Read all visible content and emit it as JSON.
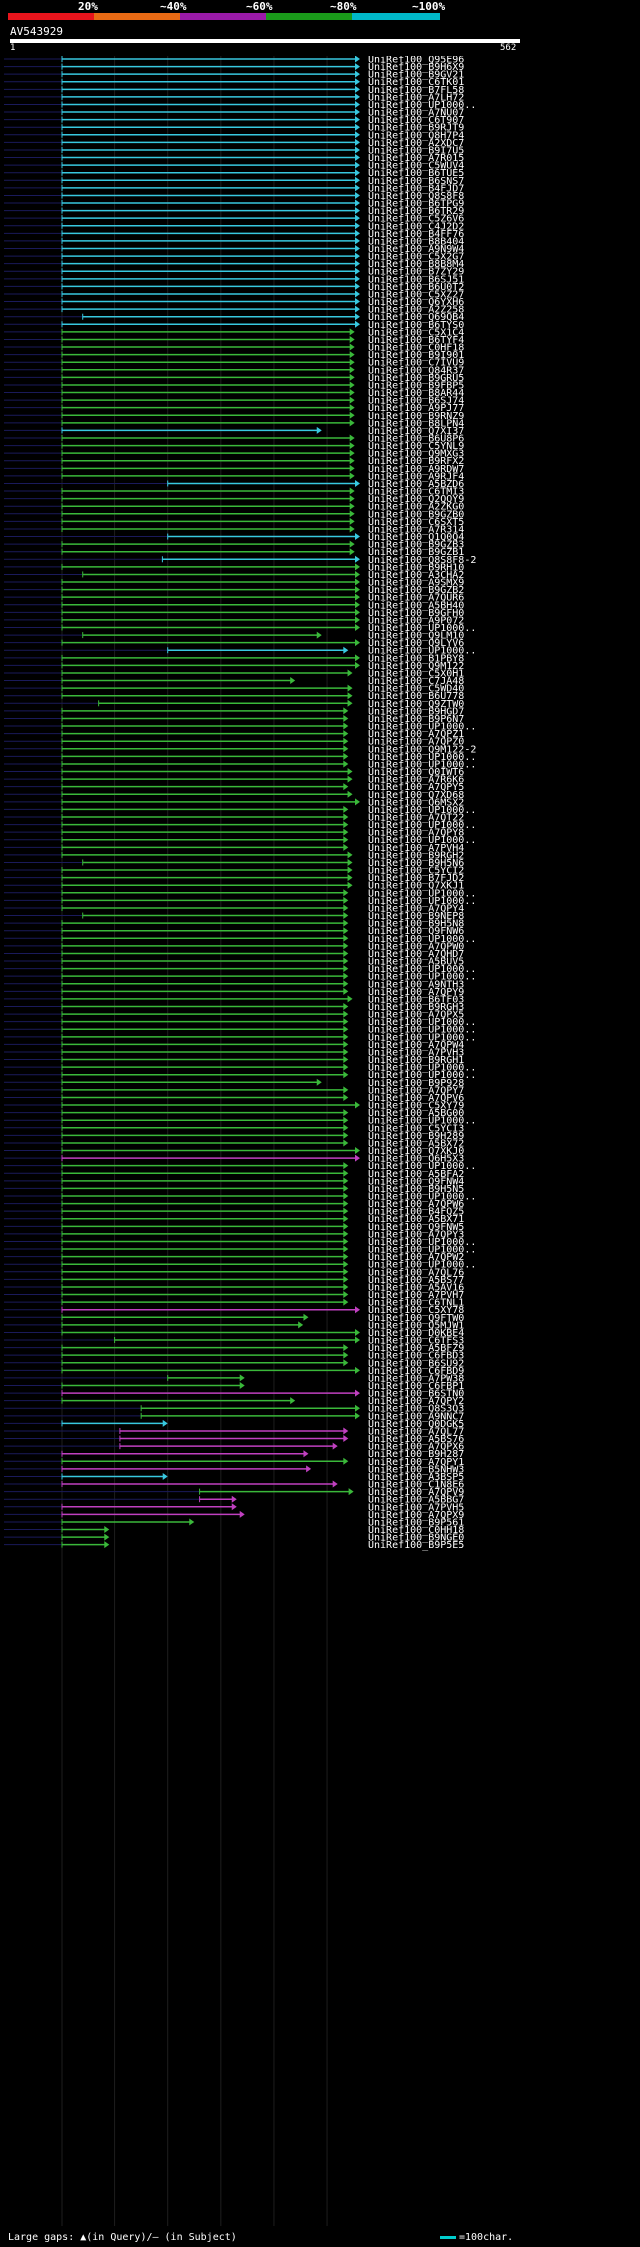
{
  "legend": {
    "labels": [
      "20%",
      "~40%",
      "~60%",
      "~80%",
      "~100%"
    ],
    "colors": [
      "#e8141c",
      "#e86a14",
      "#9a1aa8",
      "#1a9a1a",
      "#00b8c8"
    ]
  },
  "query": {
    "name": "AV543929",
    "start": "1",
    "end": "562",
    "length": 562
  },
  "footer": {
    "gaps_text": "Large gaps: ▲(in Query)/— (in Subject)",
    "scale_text": "=100char."
  },
  "colors": {
    "cyan": "#38c8e0",
    "green": "#3ab83a",
    "magenta": "#c040c0",
    "bg": "#000000"
  },
  "hits": [
    {
      "id": "UniRef100_Q95E96",
      "c": "cyan",
      "s": 1,
      "e": 562
    },
    {
      "id": "UniRef100_B9H6X9",
      "c": "cyan",
      "s": 1,
      "e": 562
    },
    {
      "id": "UniRef100_B9GV21",
      "c": "cyan",
      "s": 1,
      "e": 562
    },
    {
      "id": "UniRef100_C6TK01",
      "c": "cyan",
      "s": 1,
      "e": 562
    },
    {
      "id": "UniRef100_B7FL58",
      "c": "cyan",
      "s": 1,
      "e": 562
    },
    {
      "id": "UniRef100_A7LH72",
      "c": "cyan",
      "s": 1,
      "e": 562
    },
    {
      "id": "UniRef100_UP1000..",
      "c": "cyan",
      "s": 1,
      "e": 562
    },
    {
      "id": "UniRef100_A7NU07",
      "c": "cyan",
      "s": 1,
      "e": 562
    },
    {
      "id": "UniRef100_C6T907",
      "c": "cyan",
      "s": 1,
      "e": 562
    },
    {
      "id": "UniRef100_B9RJT9",
      "c": "cyan",
      "s": 1,
      "e": 562
    },
    {
      "id": "UniRef100_Q8H7P4",
      "c": "cyan",
      "s": 1,
      "e": 562
    },
    {
      "id": "UniRef100_A2XDC7",
      "c": "cyan",
      "s": 1,
      "e": 562
    },
    {
      "id": "UniRef100_B9I7U5",
      "c": "cyan",
      "s": 1,
      "e": 562
    },
    {
      "id": "UniRef100_A7R015",
      "c": "cyan",
      "s": 1,
      "e": 562
    },
    {
      "id": "UniRef100_C5WUV4",
      "c": "cyan",
      "s": 1,
      "e": 562
    },
    {
      "id": "UniRef100_B6TUE5",
      "c": "cyan",
      "s": 1,
      "e": 562
    },
    {
      "id": "UniRef100_B6SNS7",
      "c": "cyan",
      "s": 1,
      "e": 562
    },
    {
      "id": "UniRef100_B4FJD7",
      "c": "cyan",
      "s": 1,
      "e": 562
    },
    {
      "id": "UniRef100_Q8S8F8",
      "c": "cyan",
      "s": 1,
      "e": 562
    },
    {
      "id": "UniRef100_B6TPG9",
      "c": "cyan",
      "s": 1,
      "e": 562
    },
    {
      "id": "UniRef100_B6TR29",
      "c": "cyan",
      "s": 1,
      "e": 562
    },
    {
      "id": "UniRef100_C5Z6V6",
      "c": "cyan",
      "s": 1,
      "e": 562
    },
    {
      "id": "UniRef100_C4J2D2",
      "c": "cyan",
      "s": 1,
      "e": 562
    },
    {
      "id": "UniRef100_B4FF76",
      "c": "cyan",
      "s": 1,
      "e": 562
    },
    {
      "id": "UniRef100_B8B404",
      "c": "cyan",
      "s": 1,
      "e": 562
    },
    {
      "id": "UniRef100_A9N9W4",
      "c": "cyan",
      "s": 1,
      "e": 562
    },
    {
      "id": "UniRef100_C5X2G7",
      "c": "cyan",
      "s": 1,
      "e": 562
    },
    {
      "id": "UniRef100_B8B8M4",
      "c": "cyan",
      "s": 1,
      "e": 562
    },
    {
      "id": "UniRef100_B7ZY29",
      "c": "cyan",
      "s": 1,
      "e": 562
    },
    {
      "id": "UniRef100_B6SJ51",
      "c": "cyan",
      "s": 1,
      "e": 562
    },
    {
      "id": "UniRef100_B6U0T2",
      "c": "cyan",
      "s": 1,
      "e": 562
    },
    {
      "id": "UniRef100_C5XZ27",
      "c": "cyan",
      "s": 1,
      "e": 562
    },
    {
      "id": "UniRef100_Q6YXH6",
      "c": "cyan",
      "s": 1,
      "e": 562
    },
    {
      "id": "UniRef100_A2Z258",
      "c": "cyan",
      "s": 1,
      "e": 562
    },
    {
      "id": "UniRef100_Q69QB4",
      "c": "cyan",
      "s": 40,
      "e": 562
    },
    {
      "id": "UniRef100_B6TYS0",
      "c": "cyan",
      "s": 1,
      "e": 562
    },
    {
      "id": "UniRef100_C5X1C4",
      "c": "green",
      "s": 1,
      "e": 552
    },
    {
      "id": "UniRef100_B6TYF4",
      "c": "green",
      "s": 1,
      "e": 552
    },
    {
      "id": "UniRef100_C0HF18",
      "c": "green",
      "s": 1,
      "e": 552
    },
    {
      "id": "UniRef100_B9I901",
      "c": "green",
      "s": 1,
      "e": 552
    },
    {
      "id": "UniRef100_C7IVU9",
      "c": "green",
      "s": 1,
      "e": 552
    },
    {
      "id": "UniRef100_Q84R37",
      "c": "green",
      "s": 1,
      "e": 552
    },
    {
      "id": "UniRef100_B9GRU5",
      "c": "green",
      "s": 1,
      "e": 552
    },
    {
      "id": "UniRef100_B9FBP5",
      "c": "green",
      "s": 1,
      "e": 552
    },
    {
      "id": "UniRef100_B8AR44",
      "c": "green",
      "s": 1,
      "e": 552
    },
    {
      "id": "UniRef100_B6SJ74",
      "c": "green",
      "s": 1,
      "e": 552
    },
    {
      "id": "UniRef100_A9PJ77",
      "c": "green",
      "s": 1,
      "e": 552
    },
    {
      "id": "UniRef100_B9RNZ9",
      "c": "green",
      "s": 1,
      "e": 552
    },
    {
      "id": "UniRef100_B8LPN4",
      "c": "green",
      "s": 1,
      "e": 552
    },
    {
      "id": "UniRef100_Q7XI37",
      "c": "cyan",
      "s": 1,
      "e": 490
    },
    {
      "id": "UniRef100_B6U8P6",
      "c": "green",
      "s": 1,
      "e": 552
    },
    {
      "id": "UniRef100_C5YNL9",
      "c": "green",
      "s": 1,
      "e": 552
    },
    {
      "id": "UniRef100_Q9MXG3",
      "c": "green",
      "s": 1,
      "e": 552
    },
    {
      "id": "UniRef100_B9RFX2",
      "c": "green",
      "s": 1,
      "e": 552
    },
    {
      "id": "UniRef100_A9RDW7",
      "c": "green",
      "s": 1,
      "e": 552
    },
    {
      "id": "UniRef100_A9RJF4",
      "c": "green",
      "s": 1,
      "e": 552
    },
    {
      "id": "UniRef100_A5BZD6",
      "c": "cyan",
      "s": 200,
      "e": 562
    },
    {
      "id": "UniRef100_C6TMI3",
      "c": "green",
      "s": 1,
      "e": 552
    },
    {
      "id": "UniRef100_Q2QQY9",
      "c": "green",
      "s": 1,
      "e": 552
    },
    {
      "id": "UniRef100_A2ZKG0",
      "c": "green",
      "s": 1,
      "e": 552
    },
    {
      "id": "UniRef100_B9GZB0",
      "c": "green",
      "s": 1,
      "e": 552
    },
    {
      "id": "UniRef100_C6SXT5",
      "c": "green",
      "s": 1,
      "e": 552
    },
    {
      "id": "UniRef100_A7R314",
      "c": "green",
      "s": 1,
      "e": 552
    },
    {
      "id": "UniRef100_Q1Q0Q4",
      "c": "cyan",
      "s": 200,
      "e": 562
    },
    {
      "id": "UniRef100_B9GZB3",
      "c": "green",
      "s": 1,
      "e": 552
    },
    {
      "id": "UniRef100_B9GZB1",
      "c": "green",
      "s": 1,
      "e": 552
    },
    {
      "id": "UniRef100_Q8S8F8-2",
      "c": "cyan",
      "s": 190,
      "e": 562
    },
    {
      "id": "UniRef100_B9RH10",
      "c": "green",
      "s": 1,
      "e": 562
    },
    {
      "id": "UniRef100_A3CHA2",
      "c": "green",
      "s": 40,
      "e": 562
    },
    {
      "id": "UniRef100_A9SMX9",
      "c": "green",
      "s": 1,
      "e": 562
    },
    {
      "id": "UniRef100_B9GZB2",
      "c": "green",
      "s": 1,
      "e": 562
    },
    {
      "id": "UniRef100_A7QUR6",
      "c": "green",
      "s": 1,
      "e": 562
    },
    {
      "id": "UniRef100_A5BH40",
      "c": "green",
      "s": 1,
      "e": 562
    },
    {
      "id": "UniRef100_B9GFH0",
      "c": "green",
      "s": 1,
      "e": 562
    },
    {
      "id": "UniRef100_A9P072",
      "c": "green",
      "s": 1,
      "e": 562
    },
    {
      "id": "UniRef100_UP1000..",
      "c": "green",
      "s": 1,
      "e": 562
    },
    {
      "id": "UniRef100_Q9LM10",
      "c": "green",
      "s": 40,
      "e": 490
    },
    {
      "id": "UniRef100_Q9LYV6",
      "c": "green",
      "s": 1,
      "e": 562
    },
    {
      "id": "UniRef100_UP1000..",
      "c": "cyan",
      "s": 200,
      "e": 540
    },
    {
      "id": "UniRef100_B1PBY8",
      "c": "green",
      "s": 1,
      "e": 562
    },
    {
      "id": "UniRef100_Q9M122",
      "c": "green",
      "s": 1,
      "e": 562
    },
    {
      "id": "UniRef100_C5X0H1",
      "c": "green",
      "s": 1,
      "e": 548
    },
    {
      "id": "UniRef100_C7JA48",
      "c": "green",
      "s": 1,
      "e": 440
    },
    {
      "id": "UniRef100_C5WD40",
      "c": "green",
      "s": 1,
      "e": 548
    },
    {
      "id": "UniRef100_B6U778",
      "c": "green",
      "s": 1,
      "e": 548
    },
    {
      "id": "UniRef100_Q9ZTW0",
      "c": "green",
      "s": 70,
      "e": 548
    },
    {
      "id": "UniRef100_B9HGD7",
      "c": "green",
      "s": 1,
      "e": 540
    },
    {
      "id": "UniRef100_B9P6N7",
      "c": "green",
      "s": 1,
      "e": 540
    },
    {
      "id": "UniRef100_UP1000..",
      "c": "green",
      "s": 1,
      "e": 540
    },
    {
      "id": "UniRef100_A7QPZ1",
      "c": "green",
      "s": 1,
      "e": 540
    },
    {
      "id": "UniRef100_A7QPZ0",
      "c": "green",
      "s": 1,
      "e": 540
    },
    {
      "id": "UniRef100_Q9M122-2",
      "c": "green",
      "s": 1,
      "e": 540
    },
    {
      "id": "UniRef100_UP1000..",
      "c": "green",
      "s": 1,
      "e": 540
    },
    {
      "id": "UniRef100_UP1000..",
      "c": "green",
      "s": 1,
      "e": 540
    },
    {
      "id": "UniRef100_Q0IWT6",
      "c": "green",
      "s": 1,
      "e": 548
    },
    {
      "id": "UniRef100_A7R6K6",
      "c": "green",
      "s": 1,
      "e": 548
    },
    {
      "id": "UniRef100_A7QPY5",
      "c": "green",
      "s": 1,
      "e": 540
    },
    {
      "id": "UniRef100_Q7XD68",
      "c": "green",
      "s": 1,
      "e": 548
    },
    {
      "id": "UniRef100_Q6MSX2",
      "c": "green",
      "s": 1,
      "e": 562
    },
    {
      "id": "UniRef100_UP1000..",
      "c": "green",
      "s": 1,
      "e": 540
    },
    {
      "id": "UniRef100_A7QT22",
      "c": "green",
      "s": 1,
      "e": 540
    },
    {
      "id": "UniRef100_UP1000..",
      "c": "green",
      "s": 1,
      "e": 540
    },
    {
      "id": "UniRef100_A7QPY8",
      "c": "green",
      "s": 1,
      "e": 540
    },
    {
      "id": "UniRef100_UP1000..",
      "c": "green",
      "s": 1,
      "e": 540
    },
    {
      "id": "UniRef100_A7PVH4",
      "c": "green",
      "s": 1,
      "e": 540
    },
    {
      "id": "UniRef100_B9RGH2",
      "c": "green",
      "s": 1,
      "e": 548
    },
    {
      "id": "UniRef100_B9H5N6",
      "c": "green",
      "s": 40,
      "e": 548
    },
    {
      "id": "UniRef100_C5YCI2",
      "c": "green",
      "s": 1,
      "e": 548
    },
    {
      "id": "UniRef100_B7FJD2",
      "c": "green",
      "s": 1,
      "e": 548
    },
    {
      "id": "UniRef100_Q7XKJ1",
      "c": "green",
      "s": 1,
      "e": 548
    },
    {
      "id": "UniRef100_UP1000..",
      "c": "green",
      "s": 1,
      "e": 540
    },
    {
      "id": "UniRef100_UP1000..",
      "c": "green",
      "s": 1,
      "e": 540
    },
    {
      "id": "UniRef100_A7QPY4",
      "c": "green",
      "s": 1,
      "e": 540
    },
    {
      "id": "UniRef100_B9NEP8",
      "c": "green",
      "s": 40,
      "e": 540
    },
    {
      "id": "UniRef100_B9H5N8",
      "c": "green",
      "s": 1,
      "e": 540
    },
    {
      "id": "UniRef100_Q9FNW6",
      "c": "green",
      "s": 1,
      "e": 540
    },
    {
      "id": "UniRef100_UP1000..",
      "c": "green",
      "s": 1,
      "e": 540
    },
    {
      "id": "UniRef100_A7QPW0",
      "c": "green",
      "s": 1,
      "e": 540
    },
    {
      "id": "UniRef100_A7QHD7",
      "c": "green",
      "s": 1,
      "e": 540
    },
    {
      "id": "UniRef100_A5BUV5",
      "c": "green",
      "s": 1,
      "e": 540
    },
    {
      "id": "UniRef100_UP1000..",
      "c": "green",
      "s": 1,
      "e": 540
    },
    {
      "id": "UniRef100_UP1000..",
      "c": "green",
      "s": 1,
      "e": 540
    },
    {
      "id": "UniRef100_A9NTH3",
      "c": "green",
      "s": 1,
      "e": 540
    },
    {
      "id": "UniRef100_A7QPY9",
      "c": "green",
      "s": 1,
      "e": 540
    },
    {
      "id": "UniRef100_B6TF03",
      "c": "green",
      "s": 1,
      "e": 548
    },
    {
      "id": "UniRef100_B9RGH3",
      "c": "green",
      "s": 1,
      "e": 540
    },
    {
      "id": "UniRef100_A7QPX5",
      "c": "green",
      "s": 1,
      "e": 540
    },
    {
      "id": "UniRef100_UP1000..",
      "c": "green",
      "s": 1,
      "e": 540
    },
    {
      "id": "UniRef100_UP1000..",
      "c": "green",
      "s": 1,
      "e": 540
    },
    {
      "id": "UniRef100_UP1000..",
      "c": "green",
      "s": 1,
      "e": 540
    },
    {
      "id": "UniRef100_A7QPW4",
      "c": "green",
      "s": 1,
      "e": 540
    },
    {
      "id": "UniRef100_A7PVH3",
      "c": "green",
      "s": 1,
      "e": 540
    },
    {
      "id": "UniRef100_B9RGH1",
      "c": "green",
      "s": 1,
      "e": 540
    },
    {
      "id": "UniRef100_UP1000..",
      "c": "green",
      "s": 1,
      "e": 540
    },
    {
      "id": "UniRef100_UP1000..",
      "c": "green",
      "s": 1,
      "e": 540
    },
    {
      "id": "UniRef100_B9P928",
      "c": "green",
      "s": 1,
      "e": 490
    },
    {
      "id": "UniRef100_A7QPY7",
      "c": "green",
      "s": 1,
      "e": 540
    },
    {
      "id": "UniRef100_A7QPV6",
      "c": "green",
      "s": 1,
      "e": 540
    },
    {
      "id": "UniRef100_C5XY79",
      "c": "green",
      "s": 1,
      "e": 562
    },
    {
      "id": "UniRef100_A5BG00",
      "c": "green",
      "s": 1,
      "e": 540
    },
    {
      "id": "UniRef100_UP1000..",
      "c": "green",
      "s": 1,
      "e": 540
    },
    {
      "id": "UniRef100_C5YCI3",
      "c": "green",
      "s": 1,
      "e": 540
    },
    {
      "id": "UniRef100_B9H289",
      "c": "green",
      "s": 1,
      "e": 540
    },
    {
      "id": "UniRef100_A5BX72",
      "c": "green",
      "s": 1,
      "e": 540
    },
    {
      "id": "UniRef100_Q7XKJ0",
      "c": "green",
      "s": 1,
      "e": 562
    },
    {
      "id": "UniRef100_Q6H5X3",
      "c": "magenta",
      "s": 1,
      "e": 562
    },
    {
      "id": "UniRef100_UP1000..",
      "c": "green",
      "s": 1,
      "e": 540
    },
    {
      "id": "UniRef100_A5BFA2",
      "c": "green",
      "s": 1,
      "e": 540
    },
    {
      "id": "UniRef100_Q9FNW4",
      "c": "green",
      "s": 1,
      "e": 540
    },
    {
      "id": "UniRef100_B9H5N5",
      "c": "green",
      "s": 1,
      "e": 540
    },
    {
      "id": "UniRef100_UP1000..",
      "c": "green",
      "s": 1,
      "e": 540
    },
    {
      "id": "UniRef100_A7QPW6",
      "c": "green",
      "s": 1,
      "e": 540
    },
    {
      "id": "UniRef100_B4FQZ5",
      "c": "green",
      "s": 1,
      "e": 540
    },
    {
      "id": "UniRef100_A5BX71",
      "c": "green",
      "s": 1,
      "e": 540
    },
    {
      "id": "UniRef100_Q9FNW5",
      "c": "green",
      "s": 1,
      "e": 540
    },
    {
      "id": "UniRef100_A7QPY3",
      "c": "green",
      "s": 1,
      "e": 540
    },
    {
      "id": "UniRef100_UP1000..",
      "c": "green",
      "s": 1,
      "e": 540
    },
    {
      "id": "UniRef100_UP1000..",
      "c": "green",
      "s": 1,
      "e": 540
    },
    {
      "id": "UniRef100_A7QPW2",
      "c": "green",
      "s": 1,
      "e": 540
    },
    {
      "id": "UniRef100_UP1000..",
      "c": "green",
      "s": 1,
      "e": 540
    },
    {
      "id": "UniRef100_A7QL76",
      "c": "green",
      "s": 1,
      "e": 540
    },
    {
      "id": "UniRef100_A5BS77",
      "c": "green",
      "s": 1,
      "e": 540
    },
    {
      "id": "UniRef100_A5AV16",
      "c": "green",
      "s": 1,
      "e": 540
    },
    {
      "id": "UniRef100_A7PVH7",
      "c": "green",
      "s": 1,
      "e": 540
    },
    {
      "id": "UniRef100_C6TNL1",
      "c": "green",
      "s": 1,
      "e": 540
    },
    {
      "id": "UniRef100_C5XY78",
      "c": "magenta",
      "s": 1,
      "e": 562
    },
    {
      "id": "UniRef100_Q9FTW0",
      "c": "green",
      "s": 1,
      "e": 465
    },
    {
      "id": "UniRef100_Q5MJW1",
      "c": "green",
      "s": 1,
      "e": 455
    },
    {
      "id": "UniRef100_D0KBE4",
      "c": "green",
      "s": 1,
      "e": 562
    },
    {
      "id": "UniRef100_C6TFS3",
      "c": "green",
      "s": 100,
      "e": 562
    },
    {
      "id": "UniRef100_A5BFZ9",
      "c": "green",
      "s": 1,
      "e": 540
    },
    {
      "id": "UniRef100_C6FBD3",
      "c": "green",
      "s": 1,
      "e": 540
    },
    {
      "id": "UniRef100_B6SU92",
      "c": "green",
      "s": 1,
      "e": 540
    },
    {
      "id": "UniRef100_C6FBD9",
      "c": "green",
      "s": 1,
      "e": 562
    },
    {
      "id": "UniRef100_A7PW38",
      "c": "green",
      "s": 200,
      "e": 345
    },
    {
      "id": "UniRef100_C6FBP1",
      "c": "green",
      "s": 1,
      "e": 345
    },
    {
      "id": "UniRef100_B6STN0",
      "c": "magenta",
      "s": 1,
      "e": 562
    },
    {
      "id": "UniRef100_A7QPY2",
      "c": "green",
      "s": 1,
      "e": 440
    },
    {
      "id": "UniRef100_Q8S3Q3",
      "c": "green",
      "s": 150,
      "e": 562
    },
    {
      "id": "UniRef100_A9NNC7",
      "c": "green",
      "s": 150,
      "e": 562
    },
    {
      "id": "UniRef100_Q0DGK5",
      "c": "cyan",
      "s": 1,
      "e": 200
    },
    {
      "id": "UniRef100_A7QL77",
      "c": "magenta",
      "s": 110,
      "e": 540
    },
    {
      "id": "UniRef100_A5BS76",
      "c": "magenta",
      "s": 110,
      "e": 540
    },
    {
      "id": "UniRef100_A7QPX6",
      "c": "magenta",
      "s": 110,
      "e": 520
    },
    {
      "id": "UniRef100_B9H287",
      "c": "magenta",
      "s": 1,
      "e": 465
    },
    {
      "id": "UniRef100_A7QPY1",
      "c": "green",
      "s": 1,
      "e": 540
    },
    {
      "id": "UniRef100_B5NHW3",
      "c": "magenta",
      "s": 1,
      "e": 470
    },
    {
      "id": "UniRef100_A3BSP5",
      "c": "cyan",
      "s": 1,
      "e": 200
    },
    {
      "id": "UniRef100_C1N8E6",
      "c": "magenta",
      "s": 1,
      "e": 520
    },
    {
      "id": "UniRef100_A7QPV9",
      "c": "green",
      "s": 260,
      "e": 550
    },
    {
      "id": "UniRef100_A5BBG7",
      "c": "magenta",
      "s": 260,
      "e": 330
    },
    {
      "id": "UniRef100_A7PVH5",
      "c": "magenta",
      "s": 1,
      "e": 330
    },
    {
      "id": "UniRef100_A7QPX9",
      "c": "magenta",
      "s": 1,
      "e": 345
    },
    {
      "id": "UniRef100_B9P561",
      "c": "green",
      "s": 1,
      "e": 250
    },
    {
      "id": "UniRef100_C0HH18",
      "c": "green",
      "s": 1,
      "e": 90
    },
    {
      "id": "UniRef100_B9NGE0",
      "c": "green",
      "s": 1,
      "e": 90
    },
    {
      "id": "UniRef100_B9P5E5",
      "c": "green",
      "s": 1,
      "e": 90
    }
  ]
}
